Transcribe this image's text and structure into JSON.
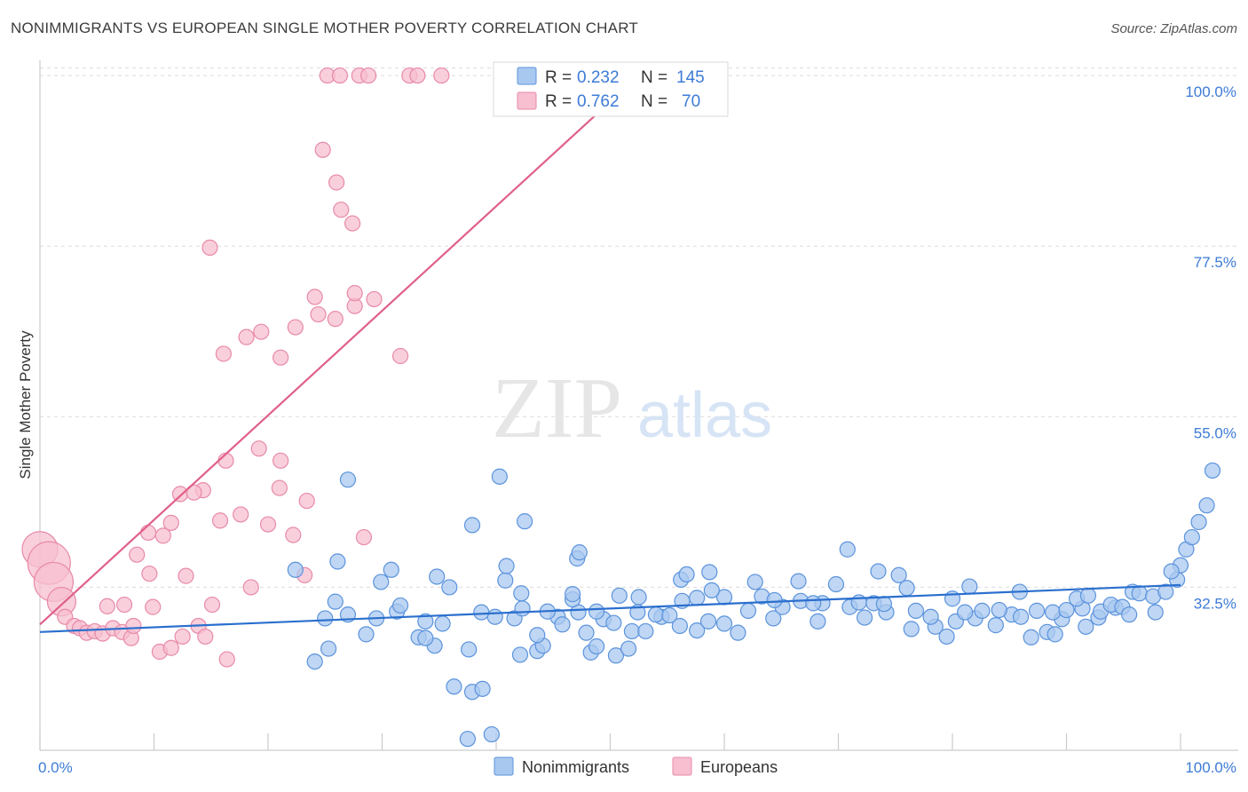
{
  "title": "NONIMMIGRANTS VS EUROPEAN SINGLE MOTHER POVERTY CORRELATION CHART",
  "source": "Source: ZipAtlas.com",
  "watermark": {
    "part1": "ZIP",
    "part2": "atlas"
  },
  "colors": {
    "blue_fill": "#a9c8f0",
    "blue_stroke": "#5b93dc",
    "blue_line": "#2a6fce",
    "pink_fill": "#f7bfd0",
    "pink_stroke": "#e88aa8",
    "pink_line": "#e0608a",
    "tick_text": "#3d7bd6",
    "grid": "#dcdcdc"
  },
  "legend": {
    "rows": [
      {
        "r_label": "R =",
        "r_value": "0.232",
        "n_label": "N =",
        "n_value": "145",
        "series": "blue"
      },
      {
        "r_label": "R =",
        "r_value": "0.762",
        "n_label": "N =",
        "n_value": "70",
        "series": "pink"
      }
    ]
  },
  "bottom_legend": [
    {
      "label": "Nonimmigrants",
      "series": "blue"
    },
    {
      "label": "Europeans",
      "series": "pink"
    }
  ],
  "chart_data": {
    "type": "scatter",
    "title": "NONIMMIGRANTS VS EUROPEAN SINGLE MOTHER POVERTY CORRELATION CHART",
    "xlabel": "",
    "ylabel": "Single Mother Poverty",
    "x_tick_labels": [
      "0.0%",
      "100.0%"
    ],
    "y_tick_labels": [
      "32.5%",
      "55.0%",
      "77.5%",
      "100.0%"
    ],
    "y_ticks": [
      32.5,
      55.0,
      77.5,
      100.0
    ],
    "xlim": [
      0,
      100
    ],
    "ylim": [
      11,
      102
    ],
    "grid": true,
    "legend_position": "top-center",
    "series": [
      {
        "name": "Nonimmigrants",
        "color": "#a9c8f0",
        "trend": {
          "x": [
            0,
            100
          ],
          "y": [
            26.6,
            32.8
          ]
        },
        "points": [
          [
            37.5,
            12.5
          ],
          [
            39.6,
            13.1
          ],
          [
            36.3,
            19.4
          ],
          [
            37.9,
            18.7
          ],
          [
            38.8,
            19.1
          ],
          [
            24.1,
            22.7
          ],
          [
            34.6,
            24.8
          ],
          [
            37.6,
            24.3
          ],
          [
            43.6,
            24.1
          ],
          [
            42.1,
            23.6
          ],
          [
            44.1,
            24.8
          ],
          [
            48.3,
            23.9
          ],
          [
            48.8,
            24.7
          ],
          [
            50.5,
            23.5
          ],
          [
            51.6,
            24.4
          ],
          [
            25.3,
            24.4
          ],
          [
            28.6,
            26.3
          ],
          [
            33.2,
            25.9
          ],
          [
            33.8,
            25.8
          ],
          [
            35.3,
            27.7
          ],
          [
            39.9,
            28.6
          ],
          [
            41.6,
            28.4
          ],
          [
            43.6,
            26.2
          ],
          [
            45.4,
            28.6
          ],
          [
            47.2,
            29.2
          ],
          [
            49.4,
            28.3
          ],
          [
            51.9,
            26.7
          ],
          [
            54.5,
            28.6
          ],
          [
            56.1,
            27.4
          ],
          [
            57.6,
            26.8
          ],
          [
            25.0,
            28.4
          ],
          [
            27.0,
            28.9
          ],
          [
            29.5,
            28.4
          ],
          [
            31.3,
            29.3
          ],
          [
            33.8,
            28.0
          ],
          [
            38.7,
            29.2
          ],
          [
            42.3,
            29.7
          ],
          [
            44.5,
            29.3
          ],
          [
            46.7,
            30.9
          ],
          [
            48.8,
            29.3
          ],
          [
            52.4,
            29.2
          ],
          [
            54.0,
            28.9
          ],
          [
            56.3,
            30.7
          ],
          [
            58.6,
            28.0
          ],
          [
            60.0,
            27.7
          ],
          [
            62.1,
            29.4
          ],
          [
            64.3,
            28.4
          ],
          [
            66.7,
            30.7
          ],
          [
            68.6,
            30.4
          ],
          [
            71.0,
            29.9
          ],
          [
            72.3,
            28.5
          ],
          [
            74.2,
            29.2
          ],
          [
            76.4,
            27.0
          ],
          [
            78.5,
            27.3
          ],
          [
            80.3,
            28.0
          ],
          [
            82.0,
            28.4
          ],
          [
            83.8,
            27.5
          ],
          [
            85.2,
            28.9
          ],
          [
            86.9,
            25.9
          ],
          [
            88.3,
            26.6
          ],
          [
            89.6,
            28.3
          ],
          [
            91.7,
            27.3
          ],
          [
            92.8,
            28.5
          ],
          [
            94.3,
            29.8
          ],
          [
            95.8,
            31.9
          ],
          [
            25.9,
            30.6
          ],
          [
            29.9,
            33.2
          ],
          [
            31.6,
            30.1
          ],
          [
            35.9,
            32.5
          ],
          [
            40.8,
            33.4
          ],
          [
            42.2,
            31.7
          ],
          [
            46.7,
            31.6
          ],
          [
            50.8,
            31.4
          ],
          [
            52.5,
            31.2
          ],
          [
            56.2,
            33.5
          ],
          [
            57.6,
            31.1
          ],
          [
            60.0,
            31.2
          ],
          [
            63.3,
            31.3
          ],
          [
            65.1,
            29.9
          ],
          [
            67.8,
            30.4
          ],
          [
            69.8,
            32.9
          ],
          [
            71.8,
            30.5
          ],
          [
            73.1,
            30.4
          ],
          [
            76.0,
            32.4
          ],
          [
            78.1,
            28.6
          ],
          [
            80.0,
            31.0
          ],
          [
            81.1,
            29.2
          ],
          [
            82.6,
            29.4
          ],
          [
            84.1,
            29.5
          ],
          [
            86.0,
            28.6
          ],
          [
            87.4,
            29.4
          ],
          [
            88.8,
            29.2
          ],
          [
            90.0,
            29.5
          ],
          [
            91.4,
            29.7
          ],
          [
            93.0,
            29.3
          ],
          [
            93.9,
            30.2
          ],
          [
            94.9,
            29.9
          ],
          [
            96.4,
            31.7
          ],
          [
            97.6,
            31.3
          ],
          [
            98.7,
            31.9
          ],
          [
            99.7,
            33.5
          ],
          [
            100.0,
            35.4
          ],
          [
            100.5,
            37.5
          ],
          [
            101.0,
            39.1
          ],
          [
            101.6,
            41.1
          ],
          [
            102.3,
            43.3
          ],
          [
            102.8,
            47.9
          ],
          [
            22.4,
            34.8
          ],
          [
            26.1,
            35.9
          ],
          [
            30.8,
            34.8
          ],
          [
            34.8,
            33.9
          ],
          [
            40.9,
            35.3
          ],
          [
            47.1,
            36.3
          ],
          [
            56.7,
            34.2
          ],
          [
            58.7,
            34.5
          ],
          [
            62.7,
            33.2
          ],
          [
            66.5,
            33.3
          ],
          [
            70.8,
            37.5
          ],
          [
            73.5,
            34.6
          ],
          [
            75.3,
            34.1
          ],
          [
            81.5,
            32.6
          ],
          [
            85.9,
            31.9
          ],
          [
            27.0,
            46.7
          ],
          [
            40.3,
            47.1
          ],
          [
            37.9,
            40.7
          ],
          [
            42.5,
            41.2
          ],
          [
            47.3,
            37.1
          ],
          [
            90.9,
            31.0
          ],
          [
            97.8,
            29.2
          ],
          [
            99.2,
            34.6
          ],
          [
            95.5,
            28.9
          ],
          [
            91.9,
            31.4
          ],
          [
            89.0,
            26.3
          ],
          [
            79.5,
            26.0
          ],
          [
            76.8,
            29.4
          ],
          [
            74.0,
            30.3
          ],
          [
            68.2,
            28.0
          ],
          [
            64.4,
            30.8
          ],
          [
            61.2,
            26.5
          ],
          [
            58.9,
            32.1
          ],
          [
            55.2,
            28.8
          ],
          [
            53.1,
            26.7
          ],
          [
            50.3,
            27.8
          ],
          [
            47.9,
            26.5
          ],
          [
            45.8,
            27.6
          ]
        ]
      },
      {
        "name": "Europeans",
        "color": "#f7bfd0",
        "trend": {
          "x": [
            0,
            52.5
          ],
          "y": [
            27.6,
            100.0
          ]
        },
        "points": [
          [
            0.0,
            37.5
          ],
          [
            0.8,
            35.7
          ],
          [
            1.2,
            33.2
          ],
          [
            1.9,
            30.6
          ],
          [
            2.2,
            28.6
          ],
          [
            3.0,
            27.4
          ],
          [
            3.5,
            27.1
          ],
          [
            4.1,
            26.5
          ],
          [
            4.8,
            26.7
          ],
          [
            5.5,
            26.4
          ],
          [
            6.4,
            27.1
          ],
          [
            7.2,
            26.6
          ],
          [
            8.0,
            25.8
          ],
          [
            5.9,
            30.0
          ],
          [
            7.4,
            30.2
          ],
          [
            9.9,
            29.9
          ],
          [
            8.2,
            27.4
          ],
          [
            10.5,
            24.0
          ],
          [
            11.5,
            24.5
          ],
          [
            12.5,
            26.0
          ],
          [
            13.9,
            27.4
          ],
          [
            14.5,
            26.0
          ],
          [
            15.1,
            30.2
          ],
          [
            16.4,
            23.0
          ],
          [
            18.5,
            32.5
          ],
          [
            12.8,
            34.0
          ],
          [
            9.6,
            34.3
          ],
          [
            8.5,
            36.8
          ],
          [
            9.5,
            39.7
          ],
          [
            10.8,
            39.3
          ],
          [
            11.5,
            41.0
          ],
          [
            12.3,
            44.8
          ],
          [
            14.3,
            45.3
          ],
          [
            13.5,
            45.0
          ],
          [
            15.8,
            41.3
          ],
          [
            17.6,
            42.1
          ],
          [
            20.0,
            40.8
          ],
          [
            22.2,
            39.4
          ],
          [
            23.4,
            43.9
          ],
          [
            21.0,
            45.6
          ],
          [
            16.3,
            49.2
          ],
          [
            19.2,
            50.8
          ],
          [
            21.1,
            49.2
          ],
          [
            23.2,
            34.1
          ],
          [
            28.4,
            39.1
          ],
          [
            18.1,
            65.5
          ],
          [
            19.4,
            66.2
          ],
          [
            16.1,
            63.3
          ],
          [
            21.1,
            62.8
          ],
          [
            22.4,
            66.8
          ],
          [
            24.4,
            68.5
          ],
          [
            25.9,
            67.9
          ],
          [
            27.6,
            69.6
          ],
          [
            24.1,
            70.8
          ],
          [
            27.6,
            71.3
          ],
          [
            29.3,
            70.5
          ],
          [
            31.6,
            63.0
          ],
          [
            14.9,
            77.3
          ],
          [
            24.8,
            90.2
          ],
          [
            26.0,
            85.9
          ],
          [
            26.4,
            82.3
          ],
          [
            27.4,
            80.5
          ],
          [
            25.2,
            100.0
          ],
          [
            26.3,
            100.0
          ],
          [
            28.0,
            100.0
          ],
          [
            28.8,
            100.0
          ],
          [
            32.4,
            100.0
          ],
          [
            33.1,
            100.0
          ],
          [
            35.2,
            100.0
          ],
          [
            49.6,
            100.0
          ]
        ]
      }
    ]
  }
}
